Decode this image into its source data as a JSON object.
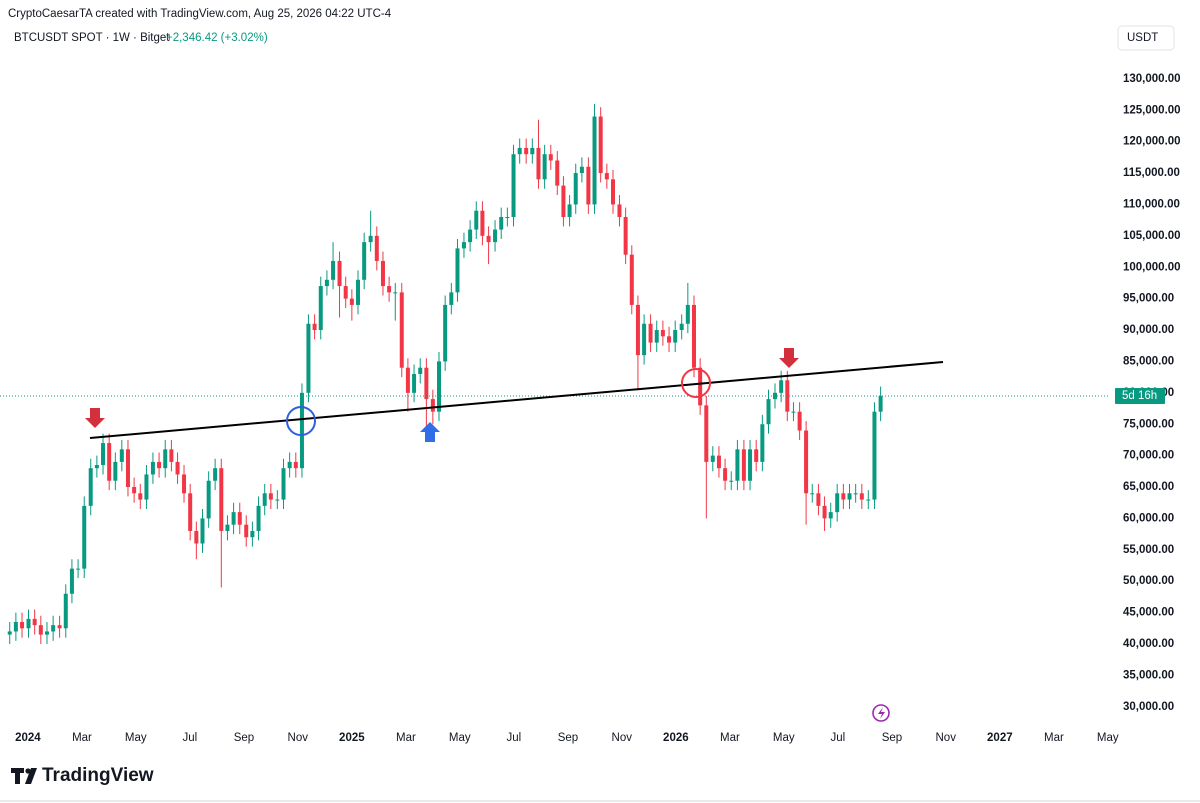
{
  "chart_data": {
    "type": "candlestick",
    "title": "CryptoCaesarTA created with TradingView.com, Aug 25, 2026 04:22 UTC-4",
    "symbol": "BTCUSDT SPOT · 1W · Bitget",
    "change": "+2,346.42 (+3.02%)",
    "currency": "USDT",
    "countdown": "5d 16h",
    "brand": "TradingView",
    "up_color": "#089981",
    "down_color": "#f23645",
    "xlim": [
      2023.914,
      2027.34
    ],
    "ylim": [
      27100,
      133800
    ],
    "xticks": [
      2024,
      {
        "value": 2024.167,
        "label": "Mar"
      },
      {
        "value": 2024.333,
        "label": "May"
      },
      {
        "value": 2024.5,
        "label": "Jul"
      },
      {
        "value": 2024.667,
        "label": "Sep"
      },
      {
        "value": 2024.833,
        "label": "Nov"
      },
      2025,
      {
        "value": 2025.167,
        "label": "Mar"
      },
      {
        "value": 2025.333,
        "label": "May"
      },
      {
        "value": 2025.5,
        "label": "Jul"
      },
      {
        "value": 2025.667,
        "label": "Sep"
      },
      {
        "value": 2025.833,
        "label": "Nov"
      },
      2026,
      {
        "value": 2026.167,
        "label": "Mar"
      },
      {
        "value": 2026.333,
        "label": "May"
      },
      {
        "value": 2026.5,
        "label": "Jul"
      },
      {
        "value": 2026.667,
        "label": "Sep"
      },
      {
        "value": 2026.833,
        "label": "Nov"
      },
      2027,
      {
        "value": 2027.167,
        "label": "Mar"
      },
      {
        "value": 2027.333,
        "label": "May"
      }
    ],
    "yticks": [
      {
        "value": 30000,
        "label": "30,000.00"
      },
      {
        "value": 35000,
        "label": "35,000.00"
      },
      {
        "value": 40000,
        "label": "40,000.00"
      },
      {
        "value": 45000,
        "label": "45,000.00"
      },
      {
        "value": 50000,
        "label": "50,000.00"
      },
      {
        "value": 55000,
        "label": "55,000.00"
      },
      {
        "value": 60000,
        "label": "60,000.00"
      },
      {
        "value": 65000,
        "label": "65,000.00"
      },
      {
        "value": 70000,
        "label": "70,000.00"
      },
      {
        "value": 75000,
        "label": "75,000.00"
      },
      {
        "value": 80000,
        "label": "80,000.00"
      },
      {
        "value": 85000,
        "label": "85,000.00"
      },
      {
        "value": 90000,
        "label": "90,000.00"
      },
      {
        "value": 95000,
        "label": "95,000.00"
      },
      {
        "value": 100000,
        "label": "100,000.00"
      },
      {
        "value": 105000,
        "label": "105,000.00"
      },
      {
        "value": 110000,
        "label": "110,000.00"
      },
      {
        "value": 115000,
        "label": "115,000.00"
      },
      {
        "value": 120000,
        "label": "120,000.00"
      },
      {
        "value": 125000,
        "label": "125,000.00"
      },
      {
        "value": 130000,
        "label": "130,000.00"
      }
    ],
    "x": [
      2023.944,
      2023.963,
      2023.982,
      2024.002,
      2024.021,
      2024.04,
      2024.059,
      2024.078,
      2024.098,
      2024.117,
      2024.136,
      2024.155,
      2024.174,
      2024.194,
      2024.213,
      2024.232,
      2024.251,
      2024.27,
      2024.29,
      2024.309,
      2024.328,
      2024.347,
      2024.366,
      2024.386,
      2024.405,
      2024.424,
      2024.443,
      2024.462,
      2024.482,
      2024.501,
      2024.52,
      2024.539,
      2024.558,
      2024.578,
      2024.597,
      2024.616,
      2024.635,
      2024.654,
      2024.674,
      2024.693,
      2024.712,
      2024.731,
      2024.75,
      2024.77,
      2024.789,
      2024.808,
      2024.827,
      2024.846,
      2024.866,
      2024.885,
      2024.904,
      2024.923,
      2024.942,
      2024.962,
      2024.981,
      2025.0,
      2025.019,
      2025.038,
      2025.058,
      2025.077,
      2025.096,
      2025.115,
      2025.134,
      2025.154,
      2025.173,
      2025.192,
      2025.211,
      2025.23,
      2025.25,
      2025.269,
      2025.288,
      2025.307,
      2025.326,
      2025.346,
      2025.365,
      2025.384,
      2025.403,
      2025.422,
      2025.442,
      2025.461,
      2025.48,
      2025.499,
      2025.518,
      2025.538,
      2025.557,
      2025.576,
      2025.595,
      2025.614,
      2025.634,
      2025.653,
      2025.672,
      2025.691,
      2025.71,
      2025.73,
      2025.749,
      2025.768,
      2025.787,
      2025.806,
      2025.826,
      2025.845,
      2025.864,
      2025.883,
      2025.902,
      2025.922,
      2025.941,
      2025.96,
      2025.979,
      2025.998,
      2026.018,
      2026.037,
      2026.056,
      2026.075,
      2026.094,
      2026.114,
      2026.133,
      2026.152,
      2026.171,
      2026.19,
      2026.21,
      2026.229,
      2026.248,
      2026.267,
      2026.286,
      2026.306,
      2026.325,
      2026.344,
      2026.363,
      2026.382,
      2026.402,
      2026.421,
      2026.44,
      2026.459,
      2026.478,
      2026.498,
      2026.517,
      2026.536,
      2026.555,
      2026.574,
      2026.594,
      2026.613,
      2026.632
    ],
    "open": [
      41500,
      42000,
      43500,
      42500,
      44000,
      43000,
      41500,
      42000,
      43000,
      42500,
      48000,
      52000,
      52000,
      62000,
      68000,
      68500,
      72000,
      66000,
      69000,
      71000,
      65000,
      64000,
      63000,
      67000,
      69000,
      68000,
      71000,
      69000,
      67000,
      64000,
      58000,
      56000,
      60000,
      66000,
      68000,
      58000,
      59000,
      61000,
      59000,
      57000,
      58000,
      62000,
      64000,
      63000,
      63000,
      68000,
      69000,
      68000,
      80000,
      91000,
      90000,
      97000,
      98000,
      101000,
      97000,
      95000,
      94000,
      98000,
      104000,
      105000,
      101000,
      97000,
      96000,
      96000,
      84000,
      80000,
      83000,
      84000,
      79000,
      77000,
      85000,
      94000,
      96000,
      103000,
      104000,
      106000,
      109000,
      105000,
      104000,
      106000,
      108000,
      108000,
      118000,
      119000,
      118000,
      119000,
      114000,
      118000,
      117000,
      113000,
      108000,
      110000,
      115000,
      116000,
      110000,
      124000,
      115000,
      114000,
      110000,
      108000,
      102000,
      94000,
      86000,
      91000,
      88000,
      90000,
      89000,
      88000,
      90000,
      91000,
      94000,
      84000,
      78000,
      69000,
      70000,
      68000,
      66000,
      66000,
      71000,
      66000,
      71000,
      69000,
      75000,
      79000,
      80000,
      82000,
      77000,
      77000,
      74000,
      64000,
      64000,
      62000,
      60000,
      61000,
      64000,
      63000,
      64000,
      64000,
      63000,
      63000,
      77000
    ],
    "high": [
      43500,
      45000,
      45000,
      45500,
      45500,
      44500,
      43500,
      44500,
      44500,
      49500,
      53500,
      53500,
      63500,
      69500,
      70000,
      73500,
      73500,
      70500,
      72500,
      72500,
      66500,
      65500,
      68500,
      70500,
      70500,
      72500,
      72500,
      70500,
      68500,
      65500,
      59500,
      61500,
      67500,
      69500,
      69500,
      60500,
      62500,
      62500,
      60500,
      59500,
      63500,
      65500,
      65500,
      64500,
      69500,
      70500,
      70500,
      81500,
      92500,
      92500,
      98500,
      99500,
      104000,
      102500,
      98500,
      96500,
      99500,
      105500,
      109000,
      106500,
      102500,
      98500,
      97500,
      97500,
      85500,
      84500,
      85500,
      85500,
      80500,
      86500,
      95500,
      97500,
      104500,
      105500,
      107500,
      110500,
      110500,
      106500,
      107500,
      109500,
      109500,
      119500,
      120500,
      120500,
      120500,
      123500,
      119500,
      119500,
      118500,
      114500,
      111500,
      116500,
      117500,
      117500,
      126000,
      125500,
      116500,
      115500,
      111500,
      109500,
      103500,
      95500,
      92500,
      92500,
      91500,
      91500,
      90500,
      91500,
      92500,
      97500,
      95500,
      85500,
      79500,
      71500,
      71500,
      69500,
      67500,
      72500,
      72500,
      72500,
      72500,
      76500,
      80500,
      81500,
      83500,
      83500,
      78500,
      78500,
      75500,
      65500,
      65500,
      63500,
      62500,
      65500,
      65500,
      65500,
      65500,
      65500,
      64500,
      78500,
      81000
    ],
    "low": [
      40000,
      40500,
      41000,
      41000,
      41500,
      40000,
      40000,
      40500,
      41000,
      41000,
      46500,
      50500,
      50500,
      60500,
      66500,
      67000,
      64500,
      64500,
      67500,
      63500,
      62500,
      61500,
      61500,
      65500,
      66500,
      66500,
      67500,
      65500,
      62500,
      56500,
      53500,
      54500,
      58500,
      64500,
      49000,
      56500,
      57500,
      57500,
      55500,
      55500,
      56500,
      60500,
      61500,
      61500,
      61500,
      66500,
      66500,
      66500,
      78500,
      88500,
      88500,
      95500,
      96500,
      92000,
      93500,
      91500,
      92500,
      96500,
      102500,
      99500,
      95500,
      94500,
      91500,
      82500,
      77000,
      78500,
      81500,
      74500,
      75000,
      75500,
      83500,
      92500,
      94500,
      101500,
      102500,
      104500,
      103500,
      100500,
      102500,
      104500,
      106500,
      106500,
      116500,
      116500,
      116500,
      112500,
      112500,
      115500,
      111500,
      106500,
      106500,
      108500,
      113500,
      108500,
      108500,
      113500,
      112500,
      108500,
      106500,
      100500,
      92500,
      80500,
      84500,
      86500,
      86500,
      87500,
      86500,
      86500,
      88500,
      89500,
      82500,
      76500,
      60000,
      67500,
      66500,
      64500,
      64500,
      64500,
      64500,
      64500,
      67500,
      67500,
      73500,
      77500,
      78500,
      75500,
      75500,
      72500,
      59000,
      62500,
      60500,
      58000,
      58500,
      59500,
      61500,
      61500,
      62500,
      61500,
      61500,
      61500,
      75500
    ],
    "close": [
      42000,
      43500,
      42500,
      44000,
      43000,
      41500,
      42000,
      43000,
      42500,
      48000,
      52000,
      52000,
      62000,
      68000,
      68500,
      72000,
      66000,
      69000,
      71000,
      65000,
      64000,
      63000,
      67000,
      69000,
      68000,
      71000,
      69000,
      67000,
      64000,
      58000,
      56000,
      60000,
      66000,
      68000,
      58000,
      59000,
      61000,
      59000,
      57000,
      58000,
      62000,
      64000,
      63000,
      63000,
      68000,
      69000,
      68000,
      80000,
      91000,
      90000,
      97000,
      98000,
      101000,
      97000,
      95000,
      94000,
      98000,
      104000,
      105000,
      101000,
      97000,
      96000,
      96000,
      84000,
      80000,
      83000,
      84000,
      79000,
      77000,
      85000,
      94000,
      96000,
      103000,
      104000,
      106000,
      109000,
      105000,
      104000,
      106000,
      108000,
      108000,
      118000,
      119000,
      118000,
      119000,
      114000,
      118000,
      117000,
      113000,
      108000,
      110000,
      115000,
      116000,
      110000,
      124000,
      115000,
      114000,
      110000,
      108000,
      102000,
      94000,
      86000,
      91000,
      88000,
      90000,
      89000,
      88000,
      90000,
      91000,
      94000,
      84000,
      78000,
      69000,
      70000,
      68000,
      66000,
      66000,
      71000,
      66000,
      71000,
      69000,
      75000,
      79000,
      80000,
      82000,
      77000,
      77000,
      74000,
      64000,
      64000,
      62000,
      60000,
      61000,
      64000,
      63000,
      64000,
      64000,
      63000,
      63000,
      77000,
      79500
    ]
  }
}
